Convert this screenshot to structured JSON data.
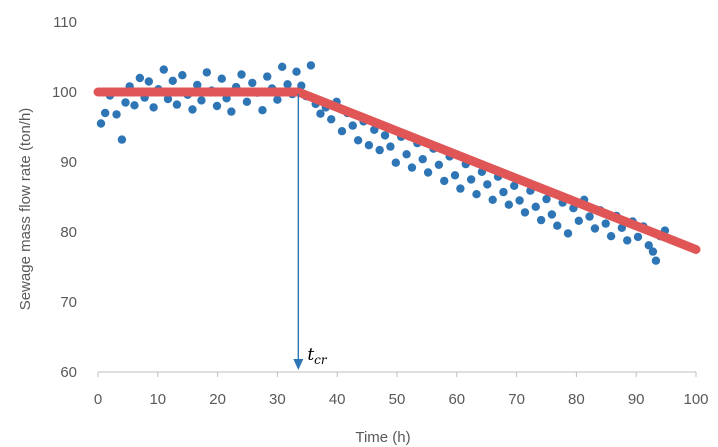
{
  "chart_data": {
    "type": "scatter",
    "xlabel": "Time (h)",
    "ylabel": "Sewage mass flow rate (ton/h)",
    "xlim": [
      0,
      100
    ],
    "ylim": [
      60,
      110
    ],
    "xticks": [
      0,
      10,
      20,
      30,
      40,
      50,
      60,
      70,
      80,
      90,
      100
    ],
    "yticks": [
      60,
      70,
      80,
      90,
      100,
      110
    ],
    "grid": false,
    "colors": {
      "points": "#2e75b6",
      "fit_line": "#e05555",
      "axis": "#bfbfbf",
      "arrow": "#2e75b6"
    },
    "series": [
      {
        "kind": "scatter",
        "x": [
          0.5,
          1.2,
          2.0,
          3.1,
          4.0,
          4.6,
          5.3,
          6.1,
          7.0,
          7.8,
          8.5,
          9.3,
          10.1,
          11.0,
          11.7,
          12.5,
          13.2,
          14.1,
          15.0,
          15.8,
          16.6,
          17.3,
          18.2,
          19.0,
          19.9,
          20.7,
          21.5,
          22.3,
          23.1,
          24.0,
          24.9,
          25.8,
          26.6,
          27.5,
          28.3,
          29.1,
          30.0,
          30.8,
          31.7,
          32.5,
          33.2,
          34.0,
          34.8,
          35.6,
          36.4,
          37.2,
          38.1,
          39.0,
          39.9,
          40.8,
          41.7,
          42.6,
          43.5,
          44.4,
          45.3,
          46.2,
          47.1,
          48.0,
          48.9,
          49.8,
          50.7,
          51.6,
          52.5,
          53.4,
          54.3,
          55.2,
          56.1,
          57.0,
          57.9,
          58.8,
          59.7,
          60.6,
          61.5,
          62.4,
          63.3,
          64.2,
          65.1,
          66.0,
          66.9,
          67.8,
          68.7,
          69.6,
          70.5,
          71.4,
          72.3,
          73.2,
          74.1,
          75.0,
          75.9,
          76.8,
          77.7,
          78.6,
          79.5,
          80.4,
          81.3,
          82.2,
          83.1,
          84.0,
          84.9,
          85.8,
          86.7,
          87.6,
          88.5,
          89.4,
          90.3,
          91.2,
          92.1,
          92.8,
          93.3,
          94.0,
          94.8
        ],
        "y": [
          95.5,
          97.0,
          99.5,
          96.8,
          93.2,
          98.5,
          100.8,
          98.1,
          102.0,
          99.2,
          101.5,
          97.8,
          100.4,
          103.2,
          99.0,
          101.6,
          98.2,
          102.4,
          99.6,
          97.5,
          101.0,
          98.8,
          102.8,
          100.2,
          98.0,
          101.9,
          99.1,
          97.2,
          100.7,
          102.5,
          98.6,
          101.3,
          99.9,
          97.4,
          102.2,
          100.5,
          98.9,
          103.6,
          101.1,
          99.7,
          102.9,
          100.9,
          99.4,
          103.8,
          98.3,
          96.9,
          97.8,
          96.1,
          98.6,
          94.4,
          97.0,
          95.2,
          93.1,
          95.8,
          92.4,
          94.6,
          91.7,
          93.8,
          92.2,
          89.9,
          93.6,
          91.1,
          89.2,
          92.7,
          90.4,
          88.5,
          91.9,
          89.6,
          87.3,
          90.8,
          88.1,
          86.2,
          89.7,
          87.5,
          85.4,
          88.6,
          86.8,
          84.6,
          87.9,
          85.7,
          83.9,
          86.6,
          84.5,
          82.8,
          85.9,
          83.6,
          81.7,
          84.7,
          82.5,
          80.9,
          84.2,
          79.8,
          83.4,
          81.6,
          84.6,
          82.2,
          80.5,
          83.1,
          81.2,
          79.4,
          82.3,
          80.6,
          78.8,
          81.5,
          79.3,
          80.8,
          78.1,
          77.2,
          75.9,
          79.4,
          80.2
        ]
      },
      {
        "kind": "line",
        "x": [
          0,
          33.5,
          100
        ],
        "y": [
          100,
          100,
          77.5
        ]
      }
    ],
    "annotations": [
      {
        "text": "t",
        "subscript": "cr",
        "x": 33.5,
        "note": "critical time marker"
      }
    ]
  }
}
